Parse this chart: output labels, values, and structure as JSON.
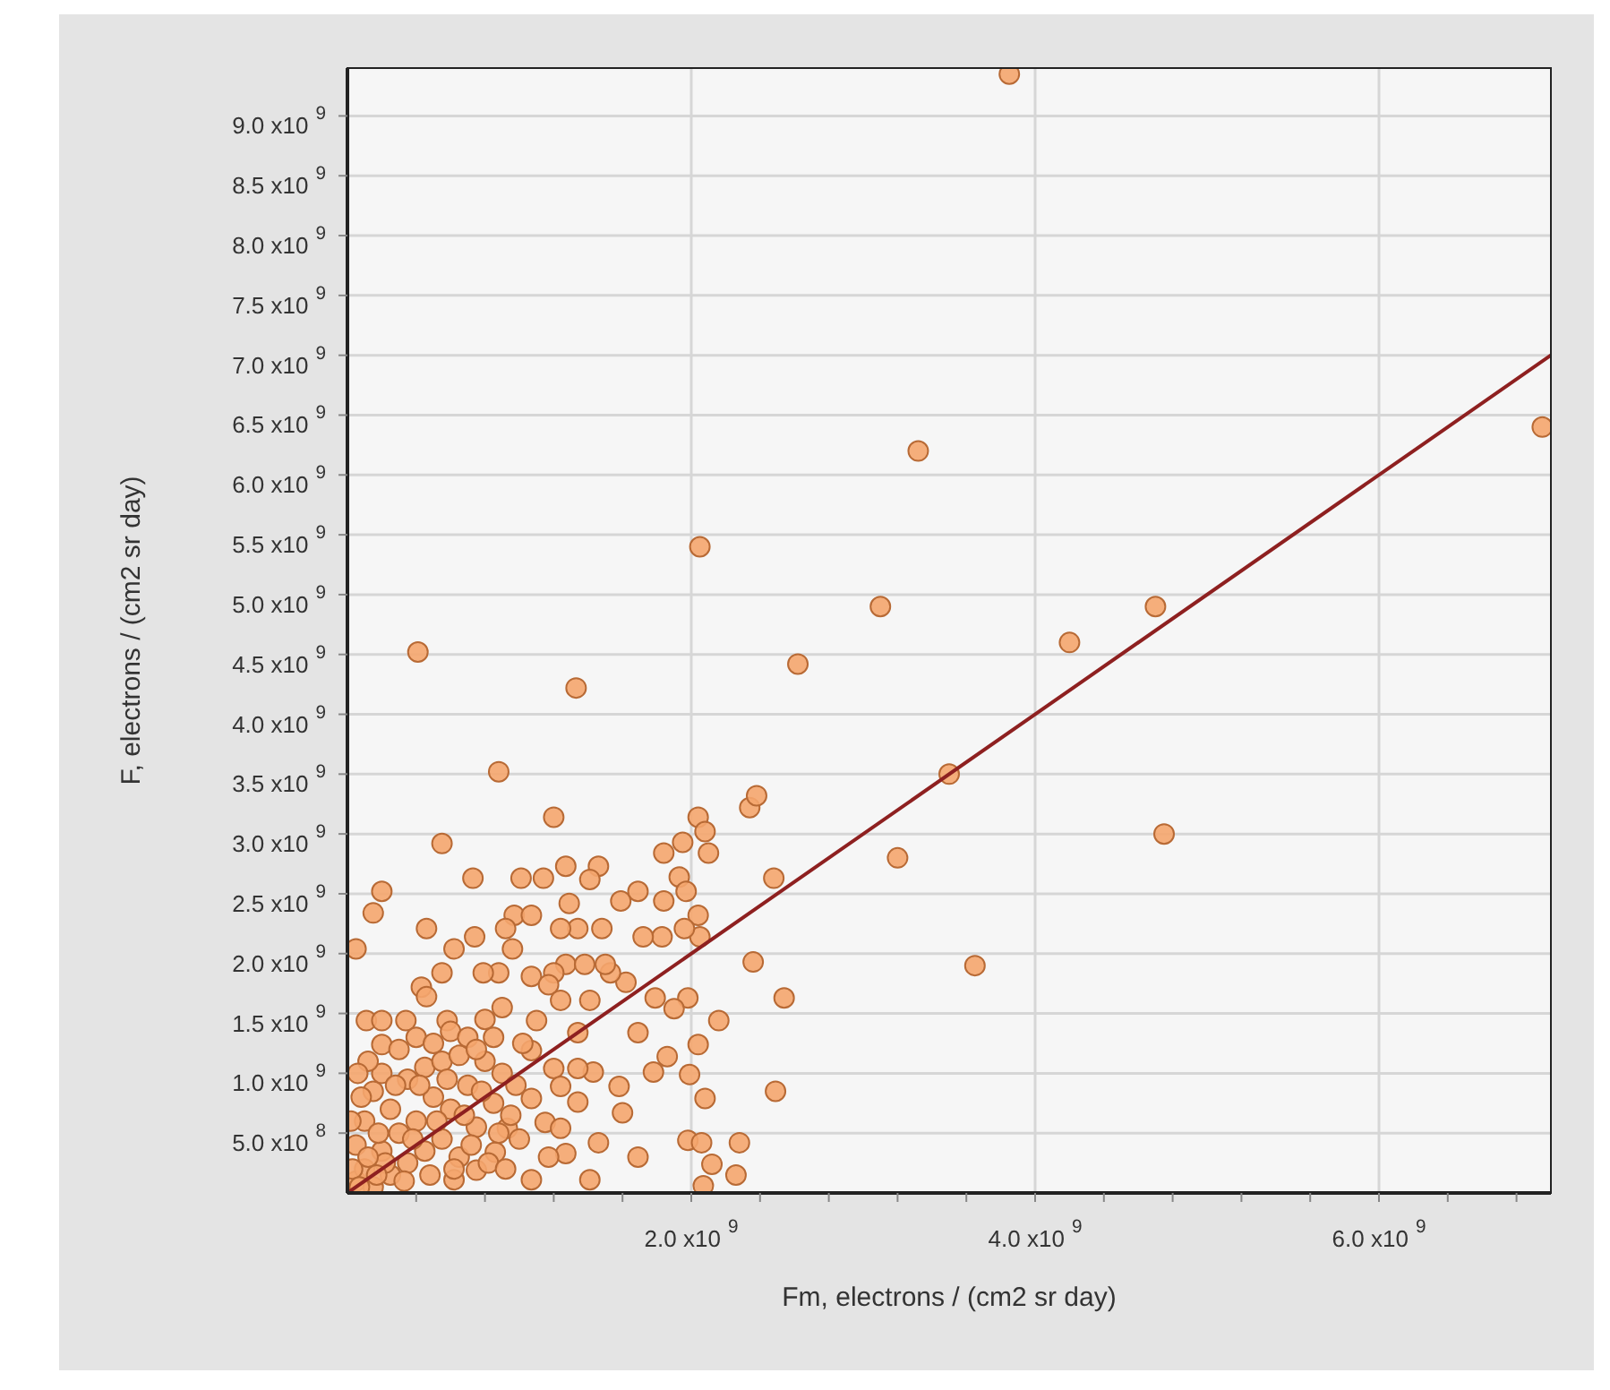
{
  "chart_data": {
    "type": "scatter",
    "xlabel": "Fm, electrons / (cm2 sr day)",
    "ylabel": "F, electrons / (cm2 sr day)",
    "xlim": [
      0,
      7000000000.0
    ],
    "ylim": [
      0,
      9400000000.0
    ],
    "xticks": [
      {
        "value": 400000000.0,
        "label": null
      },
      {
        "value": 800000000.0,
        "label": null
      },
      {
        "value": 1200000000.0,
        "label": null
      },
      {
        "value": 1600000000.0,
        "label": null
      },
      {
        "value": 2000000000.0,
        "label": "2.0 x10$^{9}$"
      },
      {
        "value": 2400000000.0,
        "label": null
      },
      {
        "value": 2800000000.0,
        "label": null
      },
      {
        "value": 3200000000.0,
        "label": null
      },
      {
        "value": 3600000000.0,
        "label": null
      },
      {
        "value": 4000000000.0,
        "label": "4.0 x10$^{9}$"
      },
      {
        "value": 4400000000.0,
        "label": null
      },
      {
        "value": 4800000000.0,
        "label": null
      },
      {
        "value": 5200000000.0,
        "label": null
      },
      {
        "value": 5600000000.0,
        "label": null
      },
      {
        "value": 6000000000.0,
        "label": "6.0 x10$^{9}$"
      },
      {
        "value": 6400000000.0,
        "label": null
      },
      {
        "value": 6800000000.0,
        "label": null
      }
    ],
    "yticks": [
      {
        "value": 500000000.0,
        "label": "5.0 x10$^{8}$"
      },
      {
        "value": 1000000000.0,
        "label": "1.0 x10$^{9}$"
      },
      {
        "value": 1500000000.0,
        "label": "1.5 x10$^{9}$"
      },
      {
        "value": 2000000000.0,
        "label": "2.0 x10$^{9}$"
      },
      {
        "value": 2500000000.0,
        "label": "2.5 x10$^{9}$"
      },
      {
        "value": 3000000000.0,
        "label": "3.0 x10$^{9}$"
      },
      {
        "value": 3500000000.0,
        "label": "3.5 x10$^{9}$"
      },
      {
        "value": 4000000000.0,
        "label": "4.0 x10$^{9}$"
      },
      {
        "value": 4500000000.0,
        "label": "4.5 x10$^{9}$"
      },
      {
        "value": 5000000000.0,
        "label": "5.0 x10$^{9}$"
      },
      {
        "value": 5500000000.0,
        "label": "5.5 x10$^{9}$"
      },
      {
        "value": 6000000000.0,
        "label": "6.0 x10$^{9}$"
      },
      {
        "value": 6500000000.0,
        "label": "6.5 x10$^{9}$"
      },
      {
        "value": 7000000000.0,
        "label": "7.0 x10$^{9}$"
      },
      {
        "value": 7500000000.0,
        "label": "7.5 x10$^{9}$"
      },
      {
        "value": 8000000000.0,
        "label": "8.0 x10$^{9}$"
      },
      {
        "value": 8500000000.0,
        "label": "8.5 x10$^{9}$"
      },
      {
        "value": 9000000000.0,
        "label": "9.0 x10$^{9}$"
      }
    ],
    "grid": true,
    "series": [
      {
        "color": "#f5a66e",
        "marker": "circle",
        "x": [
          3850000000.0,
          6950000000.0,
          3320000000.0,
          2050000000.0,
          3100000000.0,
          4200000000.0,
          4700000000.0,
          410000000.0,
          1330000000.0,
          2620000000.0,
          3500000000.0,
          4750000000.0,
          3650000000.0,
          3200000000.0,
          880000000.0,
          1200000000.0,
          550000000.0,
          200000000.0,
          150000000.0,
          50000000.0,
          730000000.0,
          1010000000.0,
          1140000000.0,
          1270000000.0,
          1460000000.0,
          1410000000.0,
          2040000000.0,
          2080000000.0,
          2100000000.0,
          1840000000.0,
          1950000000.0,
          2340000000.0,
          2380000000.0,
          2480000000.0,
          2360000000.0,
          2540000000.0,
          2160000000.0,
          2040000000.0,
          2080000000.0,
          2490000000.0,
          1980000000.0,
          2060000000.0,
          2120000000.0,
          2280000000.0,
          2260000000.0,
          2070000000.0,
          1690000000.0,
          1600000000.0,
          1410000000.0,
          1580000000.0,
          1340000000.0,
          1430000000.0,
          1860000000.0,
          1780000000.0,
          1990000000.0,
          1980000000.0,
          1790000000.0,
          1900000000.0,
          1690000000.0,
          1620000000.0,
          1530000000.0,
          1590000000.0,
          1690000000.0,
          1840000000.0,
          1930000000.0,
          1970000000.0,
          2040000000.0,
          2050000000.0,
          1960000000.0,
          1830000000.0,
          1720000000.0,
          1480000000.0,
          1340000000.0,
          1290000000.0,
          1240000000.0,
          1270000000.0,
          1380000000.0,
          1500000000.0,
          1410000000.0,
          1200000000.0,
          1070000000.0,
          970000000.0,
          1070000000.0,
          920000000.0,
          960000000.0,
          740000000.0,
          620000000.0,
          460000000.0,
          550000000.0,
          430000000.0,
          460000000.0,
          880000000.0,
          790000000.0,
          1170000000.0,
          1240000000.0,
          110000000.0,
          200000000.0,
          340000000.0,
          200000000.0,
          580000000.0,
          1100000000.0,
          1340000000.0,
          1070000000.0,
          1200000000.0,
          1340000000.0,
          1240000000.0,
          1070000000.0,
          1150000000.0,
          1240000000.0,
          1270000000.0,
          1170000000.0,
          1070000000.0,
          1460000000.0,
          930000000.0,
          860000000.0,
          750000000.0,
          620000000.0,
          50000000.0,
          100000000.0,
          150000000.0,
          200000000.0,
          250000000.0,
          300000000.0,
          350000000.0,
          400000000.0,
          450000000.0,
          500000000.0,
          550000000.0,
          600000000.0,
          650000000.0,
          700000000.0,
          750000000.0,
          800000000.0,
          850000000.0,
          900000000.0,
          950000000.0,
          100000000.0,
          150000000.0,
          200000000.0,
          250000000.0,
          300000000.0,
          350000000.0,
          400000000.0,
          450000000.0,
          500000000.0,
          550000000.0,
          600000000.0,
          650000000.0,
          700000000.0,
          750000000.0,
          800000000.0,
          850000000.0,
          900000000.0,
          50000000.0,
          80000000.0,
          120000000.0,
          180000000.0,
          220000000.0,
          280000000.0,
          330000000.0,
          380000000.0,
          420000000.0,
          480000000.0,
          520000000.0,
          580000000.0,
          620000000.0,
          680000000.0,
          720000000.0,
          780000000.0,
          820000000.0,
          880000000.0,
          920000000.0,
          980000000.0,
          1000000000.0,
          1020000000.0,
          30000000.0,
          70000000.0,
          120000000.0,
          170000000.0,
          20000000.0,
          60000000.0
        ],
        "values": [
          9350000000.0,
          6400000000.0,
          6200000000.0,
          5400000000.0,
          4900000000.0,
          4600000000.0,
          4900000000.0,
          4520000000.0,
          4220000000.0,
          4420000000.0,
          3500000000.0,
          3000000000.0,
          1900000000.0,
          2800000000.0,
          3520000000.0,
          3140000000.0,
          2920000000.0,
          2520000000.0,
          2340000000.0,
          2040000000.0,
          2630000000.0,
          2630000000.0,
          2630000000.0,
          2730000000.0,
          2730000000.0,
          2620000000.0,
          3140000000.0,
          3020000000.0,
          2840000000.0,
          2840000000.0,
          2930000000.0,
          3220000000.0,
          3320000000.0,
          2630000000.0,
          1930000000.0,
          1630000000.0,
          1440000000.0,
          1240000000.0,
          790000000.0,
          850000000.0,
          440000000.0,
          420000000.0,
          240000000.0,
          420000000.0,
          150000000.0,
          60000000.0,
          300000000.0,
          670000000.0,
          110000000.0,
          890000000.0,
          760000000.0,
          1010000000.0,
          1140000000.0,
          1010000000.0,
          990000000.0,
          1630000000.0,
          1630000000.0,
          1540000000.0,
          1340000000.0,
          1760000000.0,
          1840000000.0,
          2440000000.0,
          2520000000.0,
          2440000000.0,
          2640000000.0,
          2520000000.0,
          2320000000.0,
          2140000000.0,
          2210000000.0,
          2140000000.0,
          2140000000.0,
          2210000000.0,
          2210000000.0,
          2420000000.0,
          2210000000.0,
          1910000000.0,
          1910000000.0,
          1910000000.0,
          1610000000.0,
          1840000000.0,
          1810000000.0,
          2320000000.0,
          2320000000.0,
          2210000000.0,
          2040000000.0,
          2140000000.0,
          2040000000.0,
          2210000000.0,
          1840000000.0,
          1720000000.0,
          1640000000.0,
          1840000000.0,
          1840000000.0,
          1740000000.0,
          1610000000.0,
          1440000000.0,
          1440000000.0,
          1440000000.0,
          1240000000.0,
          1440000000.0,
          1440000000.0,
          1340000000.0,
          1190000000.0,
          1040000000.0,
          1040000000.0,
          890000000.0,
          790000000.0,
          590000000.0,
          540000000.0,
          330000000.0,
          300000000.0,
          110000000.0,
          420000000.0,
          540000000.0,
          340000000.0,
          190000000.0,
          110000000.0,
          100000000.0,
          200000000.0,
          50000000.0,
          350000000.0,
          150000000.0,
          500000000.0,
          250000000.0,
          600000000.0,
          350000000.0,
          800000000.0,
          450000000.0,
          700000000.0,
          300000000.0,
          900000000.0,
          550000000.0,
          1100000000.0,
          750000000.0,
          1000000000.0,
          650000000.0,
          600000000.0,
          850000000.0,
          1000000000.0,
          700000000.0,
          1200000000.0,
          950000000.0,
          1300000000.0,
          1050000000.0,
          1250000000.0,
          1100000000.0,
          1350000000.0,
          1150000000.0,
          1300000000.0,
          1200000000.0,
          1450000000.0,
          1300000000.0,
          1550000000.0,
          400000000.0,
          800000000.0,
          1100000000.0,
          500000000.0,
          250000000.0,
          900000000.0,
          100000000.0,
          450000000.0,
          900000000.0,
          150000000.0,
          600000000.0,
          950000000.0,
          200000000.0,
          650000000.0,
          400000000.0,
          850000000.0,
          250000000.0,
          500000000.0,
          200000000.0,
          900000000.0,
          450000000.0,
          1250000000.0,
          200000000.0,
          50000000.0,
          300000000.0,
          150000000.0,
          600000000.0,
          1000000000.0
        ]
      },
      {
        "type": "line",
        "color": "#8e2020",
        "marker": "none",
        "line_style": "solid",
        "x": [
          0,
          7000000000.0
        ],
        "values": [
          0,
          7000000000.0
        ]
      }
    ]
  }
}
